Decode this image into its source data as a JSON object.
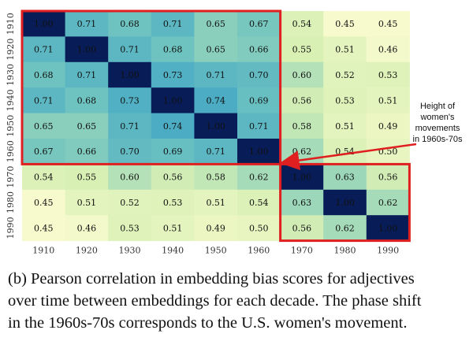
{
  "chart_data": {
    "type": "heatmap",
    "title": "",
    "xlabel": "",
    "ylabel": "",
    "x_categories": [
      "1910",
      "1920",
      "1930",
      "1940",
      "1950",
      "1960",
      "1970",
      "1980",
      "1990"
    ],
    "y_categories": [
      "1910",
      "1920",
      "1930",
      "1940",
      "1950",
      "1960",
      "1970",
      "1980",
      "1990"
    ],
    "values": [
      [
        1.0,
        0.71,
        0.68,
        0.71,
        0.65,
        0.67,
        0.54,
        0.45,
        0.45
      ],
      [
        0.71,
        1.0,
        0.71,
        0.68,
        0.65,
        0.66,
        0.55,
        0.51,
        0.46
      ],
      [
        0.68,
        0.71,
        1.0,
        0.73,
        0.71,
        0.7,
        0.6,
        0.52,
        0.53
      ],
      [
        0.71,
        0.68,
        0.73,
        1.0,
        0.74,
        0.69,
        0.56,
        0.53,
        0.51
      ],
      [
        0.65,
        0.65,
        0.71,
        0.74,
        1.0,
        0.71,
        0.58,
        0.51,
        0.49
      ],
      [
        0.67,
        0.66,
        0.7,
        0.69,
        0.71,
        1.0,
        0.62,
        0.54,
        0.5
      ],
      [
        0.54,
        0.55,
        0.6,
        0.56,
        0.58,
        0.62,
        1.0,
        0.63,
        0.56
      ],
      [
        0.45,
        0.51,
        0.52,
        0.53,
        0.51,
        0.54,
        0.63,
        1.0,
        0.62
      ],
      [
        0.45,
        0.46,
        0.53,
        0.51,
        0.49,
        0.5,
        0.56,
        0.62,
        1.0
      ]
    ],
    "value_format": "2 decimals",
    "colormap": "yellow-green-blue (low = pale yellow, high = dark navy)",
    "highlight_boxes": [
      {
        "rows": [
          "1910",
          "1960"
        ],
        "cols": [
          "1910",
          "1960"
        ],
        "color": "#e02020"
      },
      {
        "rows": [
          "1970",
          "1990"
        ],
        "cols": [
          "1970",
          "1990"
        ],
        "color": "#e02020"
      }
    ],
    "annotation": {
      "lines": [
        "Height of",
        "women's",
        "movements",
        "in 1960s-70s"
      ],
      "arrow_points_to": "boundary between 1960 and 1970 blocks",
      "arrow_color": "#e02020"
    }
  },
  "caption": {
    "lines": [
      "(b) Pearson correlation in embedding bias scores for adjectives",
      "over time between embeddings for each decade. The phase shift",
      "in the 1960s-70s corresponds to the U.S. women's movement."
    ]
  }
}
